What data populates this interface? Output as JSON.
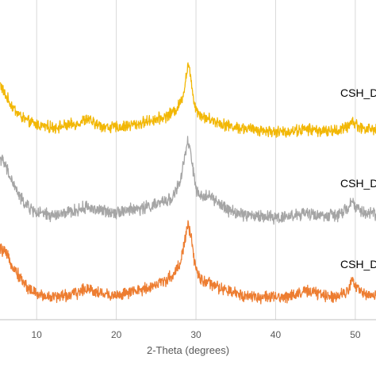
{
  "chart_data": {
    "type": "line",
    "title": "",
    "xlabel": "2-Theta (degrees)",
    "ylabel": "",
    "xlim": [
      5.4,
      52.6
    ],
    "x_ticks": [
      10,
      20,
      30,
      40,
      50
    ],
    "grid": "vertical",
    "colors": {
      "grid": "#d9d9d9",
      "axis": "#bfbfbf",
      "text": "#595959"
    },
    "series": [
      {
        "name": "CSH_D",
        "color": "#f2b705",
        "points": [
          [
            5.4,
            0.78
          ],
          [
            6.0,
            0.66
          ],
          [
            7.0,
            0.52
          ],
          [
            8.0,
            0.42
          ],
          [
            9.0,
            0.36
          ],
          [
            10.0,
            0.33
          ],
          [
            11.0,
            0.31
          ],
          [
            12.0,
            0.3
          ],
          [
            13.0,
            0.31
          ],
          [
            14.0,
            0.32
          ],
          [
            15.0,
            0.34
          ],
          [
            16.0,
            0.38
          ],
          [
            16.5,
            0.39
          ],
          [
            17.0,
            0.35
          ],
          [
            18.0,
            0.32
          ],
          [
            19.0,
            0.3
          ],
          [
            20.0,
            0.3
          ],
          [
            21.0,
            0.31
          ],
          [
            22.0,
            0.33
          ],
          [
            23.0,
            0.34
          ],
          [
            24.0,
            0.37
          ],
          [
            25.0,
            0.39
          ],
          [
            26.0,
            0.41
          ],
          [
            27.0,
            0.46
          ],
          [
            27.5,
            0.5
          ],
          [
            28.0,
            0.56
          ],
          [
            28.5,
            0.7
          ],
          [
            29.0,
            1.0
          ],
          [
            29.4,
            0.82
          ],
          [
            29.8,
            0.56
          ],
          [
            30.3,
            0.46
          ],
          [
            31.0,
            0.41
          ],
          [
            32.0,
            0.38
          ],
          [
            33.0,
            0.35
          ],
          [
            34.0,
            0.32
          ],
          [
            35.0,
            0.3
          ],
          [
            36.0,
            0.29
          ],
          [
            37.0,
            0.28
          ],
          [
            38.0,
            0.27
          ],
          [
            39.0,
            0.26
          ],
          [
            40.0,
            0.25
          ],
          [
            41.0,
            0.25
          ],
          [
            42.0,
            0.26
          ],
          [
            43.0,
            0.27
          ],
          [
            44.0,
            0.28
          ],
          [
            45.0,
            0.27
          ],
          [
            46.0,
            0.26
          ],
          [
            47.0,
            0.26
          ],
          [
            48.0,
            0.27
          ],
          [
            49.0,
            0.3
          ],
          [
            49.6,
            0.38
          ],
          [
            50.0,
            0.33
          ],
          [
            51.0,
            0.29
          ],
          [
            52.0,
            0.28
          ],
          [
            52.6,
            0.28
          ]
        ]
      },
      {
        "name": "CSH_D",
        "color": "#a5a5a5",
        "points": [
          [
            5.4,
            0.84
          ],
          [
            6.0,
            0.76
          ],
          [
            7.0,
            0.58
          ],
          [
            8.0,
            0.42
          ],
          [
            9.0,
            0.33
          ],
          [
            10.0,
            0.28
          ],
          [
            11.0,
            0.26
          ],
          [
            12.0,
            0.25
          ],
          [
            13.0,
            0.26
          ],
          [
            14.0,
            0.28
          ],
          [
            15.0,
            0.3
          ],
          [
            16.0,
            0.33
          ],
          [
            16.5,
            0.34
          ],
          [
            17.0,
            0.32
          ],
          [
            18.0,
            0.3
          ],
          [
            19.0,
            0.29
          ],
          [
            20.0,
            0.29
          ],
          [
            21.0,
            0.3
          ],
          [
            22.0,
            0.31
          ],
          [
            23.0,
            0.32
          ],
          [
            24.0,
            0.34
          ],
          [
            25.0,
            0.36
          ],
          [
            26.0,
            0.39
          ],
          [
            27.0,
            0.43
          ],
          [
            28.0,
            0.58
          ],
          [
            28.5,
            0.8
          ],
          [
            29.0,
            1.0
          ],
          [
            29.4,
            0.86
          ],
          [
            29.9,
            0.55
          ],
          [
            30.5,
            0.42
          ],
          [
            31.0,
            0.44
          ],
          [
            31.5,
            0.48
          ],
          [
            32.0,
            0.42
          ],
          [
            33.0,
            0.36
          ],
          [
            34.0,
            0.31
          ],
          [
            35.0,
            0.28
          ],
          [
            36.0,
            0.26
          ],
          [
            37.0,
            0.25
          ],
          [
            38.0,
            0.24
          ],
          [
            39.0,
            0.24
          ],
          [
            40.0,
            0.23
          ],
          [
            41.0,
            0.24
          ],
          [
            42.0,
            0.25
          ],
          [
            43.0,
            0.26
          ],
          [
            44.0,
            0.27
          ],
          [
            45.0,
            0.26
          ],
          [
            46.0,
            0.25
          ],
          [
            47.0,
            0.25
          ],
          [
            48.0,
            0.26
          ],
          [
            49.0,
            0.31
          ],
          [
            49.6,
            0.4
          ],
          [
            50.0,
            0.34
          ],
          [
            51.0,
            0.28
          ],
          [
            52.0,
            0.27
          ],
          [
            52.6,
            0.27
          ]
        ]
      },
      {
        "name": "CSH_D",
        "color": "#ed7d31",
        "points": [
          [
            5.4,
            0.74
          ],
          [
            6.0,
            0.7
          ],
          [
            7.0,
            0.56
          ],
          [
            8.0,
            0.42
          ],
          [
            9.0,
            0.32
          ],
          [
            10.0,
            0.26
          ],
          [
            11.0,
            0.24
          ],
          [
            12.0,
            0.23
          ],
          [
            13.0,
            0.24
          ],
          [
            14.0,
            0.25
          ],
          [
            15.0,
            0.27
          ],
          [
            16.0,
            0.31
          ],
          [
            16.5,
            0.33
          ],
          [
            17.0,
            0.3
          ],
          [
            18.0,
            0.27
          ],
          [
            19.0,
            0.25
          ],
          [
            20.0,
            0.25
          ],
          [
            21.0,
            0.26
          ],
          [
            22.0,
            0.28
          ],
          [
            23.0,
            0.3
          ],
          [
            24.0,
            0.33
          ],
          [
            25.0,
            0.36
          ],
          [
            26.0,
            0.4
          ],
          [
            27.0,
            0.45
          ],
          [
            28.0,
            0.58
          ],
          [
            28.5,
            0.78
          ],
          [
            29.0,
            1.0
          ],
          [
            29.4,
            0.84
          ],
          [
            29.9,
            0.55
          ],
          [
            30.5,
            0.42
          ],
          [
            31.0,
            0.4
          ],
          [
            32.0,
            0.36
          ],
          [
            33.0,
            0.32
          ],
          [
            34.0,
            0.29
          ],
          [
            35.0,
            0.27
          ],
          [
            36.0,
            0.25
          ],
          [
            37.0,
            0.24
          ],
          [
            38.0,
            0.23
          ],
          [
            39.0,
            0.23
          ],
          [
            40.0,
            0.22
          ],
          [
            41.0,
            0.23
          ],
          [
            42.0,
            0.25
          ],
          [
            43.0,
            0.27
          ],
          [
            44.0,
            0.29
          ],
          [
            45.0,
            0.27
          ],
          [
            46.0,
            0.25
          ],
          [
            47.0,
            0.24
          ],
          [
            48.0,
            0.25
          ],
          [
            49.0,
            0.3
          ],
          [
            49.6,
            0.4
          ],
          [
            50.0,
            0.34
          ],
          [
            51.0,
            0.27
          ],
          [
            52.0,
            0.25
          ],
          [
            52.6,
            0.25
          ]
        ]
      }
    ]
  }
}
